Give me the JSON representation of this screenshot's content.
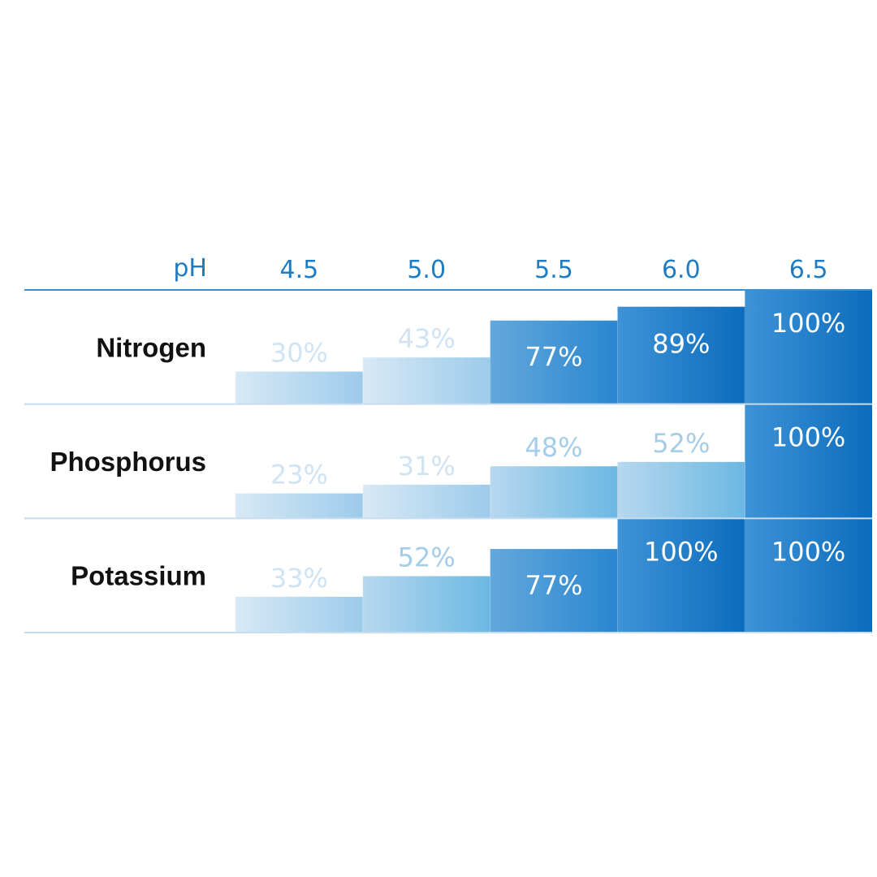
{
  "chart_data": {
    "type": "bar",
    "header_label": "pH",
    "categories": [
      "4.5",
      "5.0",
      "5.5",
      "6.0",
      "6.5"
    ],
    "series": [
      {
        "name": "Nitrogen",
        "values": [
          30,
          43,
          77,
          89,
          100
        ],
        "labels": [
          "30%",
          "43%",
          "77%",
          "89%",
          "100%"
        ]
      },
      {
        "name": "Phosphorus",
        "values": [
          23,
          31,
          48,
          52,
          100
        ],
        "labels": [
          "23%",
          "31%",
          "48%",
          "52%",
          "100%"
        ]
      },
      {
        "name": "Potassium",
        "values": [
          33,
          52,
          77,
          100,
          100
        ],
        "labels": [
          "33%",
          "52%",
          "77%",
          "100%",
          "100%"
        ]
      }
    ],
    "ylim": [
      0,
      100
    ],
    "colors": {
      "accent": "#1f7cc0",
      "light": "#d6e8f6",
      "mid": "#7fc0e6",
      "dark": "#0a6cbc",
      "divider": "#c7dcef",
      "header_rule": "#3a8fcf",
      "label_light": "#cfe3f3",
      "label_mid": "#a9cfea"
    }
  }
}
